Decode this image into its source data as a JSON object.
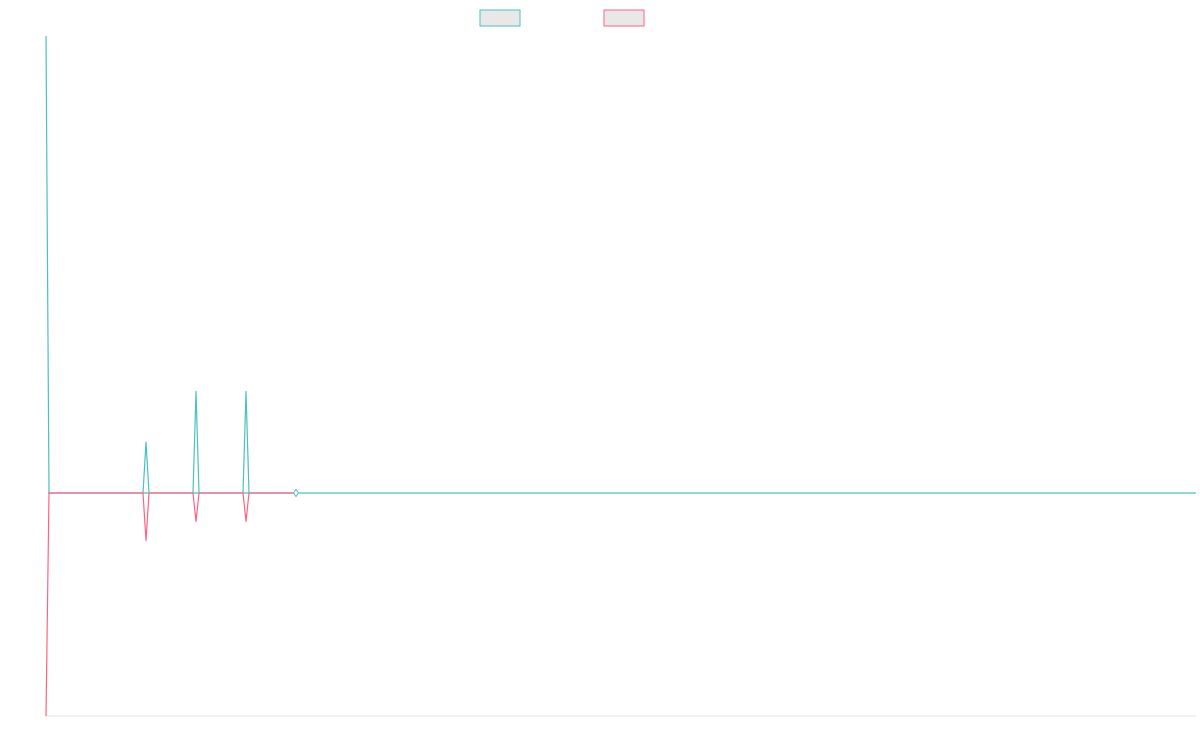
{
  "chart_data": {
    "type": "line",
    "title": "",
    "xlabel": "",
    "ylabel": "",
    "x": [
      0,
      1,
      2,
      3,
      4,
      5
    ],
    "xlim": [
      0,
      23
    ],
    "ylim": [
      -22,
      45
    ],
    "grid": false,
    "legend_position": "top",
    "series": [
      {
        "color": "#4bc0c0",
        "values": [
          45,
          0,
          5,
          10,
          10,
          0
        ]
      },
      {
        "color": "#ff6384",
        "values": [
          -22,
          0,
          -4.7,
          -2.8,
          -2.8,
          0
        ]
      }
    ],
    "baseline_color": "#4bc0c0"
  }
}
